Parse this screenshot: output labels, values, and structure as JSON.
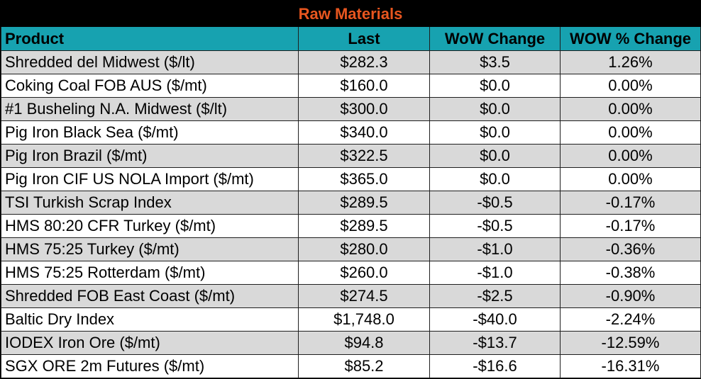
{
  "title": "Raw Materials",
  "headers": [
    "Product",
    "Last",
    "WoW Change",
    "WOW % Change"
  ],
  "rows": [
    {
      "product": "Shredded del  Midwest ($/lt)",
      "last": "$282.3",
      "wow": "$3.5",
      "pct": "1.26%"
    },
    {
      "product": "Coking Coal FOB AUS ($/mt)",
      "last": "$160.0",
      "wow": "$0.0",
      "pct": "0.00%"
    },
    {
      "product": "#1 Busheling N.A. Midwest ($/lt)",
      "last": "$300.0",
      "wow": "$0.0",
      "pct": "0.00%"
    },
    {
      "product": "Pig Iron Black Sea ($/mt)",
      "last": "$340.0",
      "wow": "$0.0",
      "pct": "0.00%"
    },
    {
      "product": "Pig Iron Brazil ($/mt)",
      "last": "$322.5",
      "wow": "$0.0",
      "pct": "0.00%"
    },
    {
      "product": "Pig Iron CIF US NOLA Import ($/mt)",
      "last": "$365.0",
      "wow": "$0.0",
      "pct": "0.00%"
    },
    {
      "product": "TSI Turkish Scrap Index",
      "last": "$289.5",
      "wow": "-$0.5",
      "pct": "-0.17%"
    },
    {
      "product": "HMS 80:20 CFR Turkey ($/mt)",
      "last": "$289.5",
      "wow": "-$0.5",
      "pct": "-0.17%"
    },
    {
      "product": "HMS 75:25 Turkey ($/mt)",
      "last": "$280.0",
      "wow": "-$1.0",
      "pct": "-0.36%"
    },
    {
      "product": "HMS 75:25 Rotterdam ($/mt)",
      "last": "$260.0",
      "wow": "-$1.0",
      "pct": "-0.38%"
    },
    {
      "product": "Shredded FOB East Coast ($/mt)",
      "last": "$274.5",
      "wow": "-$2.5",
      "pct": "-0.90%"
    },
    {
      "product": "Baltic Dry Index",
      "last": "$1,748.0",
      "wow": "-$40.0",
      "pct": "-2.24%"
    },
    {
      "product": "IODEX  Iron Ore ($/mt)",
      "last": "$94.8",
      "wow": "-$13.7",
      "pct": "-12.59%"
    },
    {
      "product": "SGX ORE 2m Futures ($/mt)",
      "last": "$85.2",
      "wow": "-$16.6",
      "pct": "-16.31%"
    }
  ],
  "colors": {
    "title_bg": "#000000",
    "title_text": "#e8561f",
    "header_bg": "#17a2b0",
    "row_shade": "#d9d9d9",
    "row_plain": "#ffffff"
  }
}
